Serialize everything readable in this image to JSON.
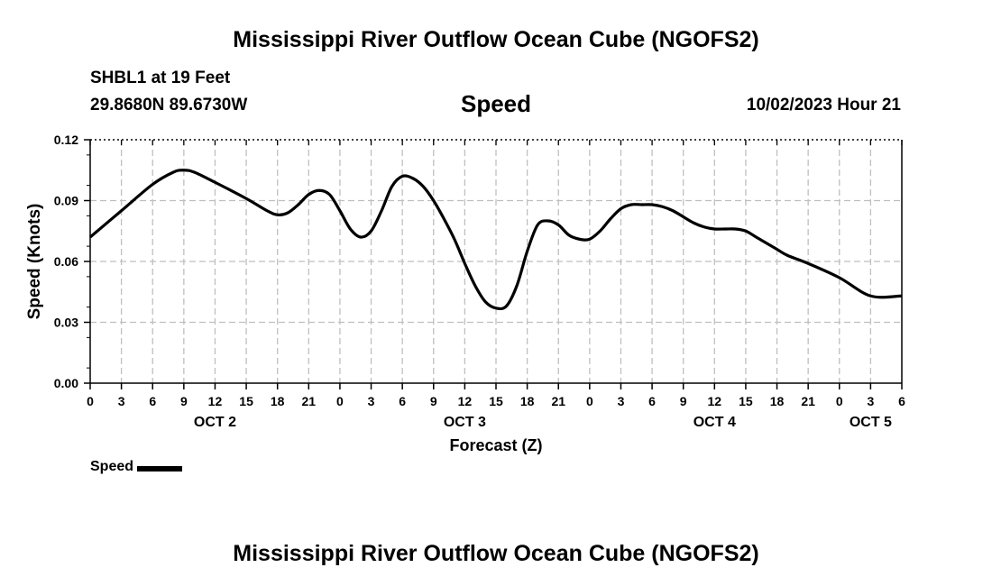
{
  "header": {
    "title": "Mississippi River Outflow Ocean Cube (NGOFS2)",
    "station": "SHBL1 at 19 Feet",
    "coords": "29.8680N  89.6730W",
    "chart_title": "Speed",
    "datetime": "10/02/2023 Hour 21"
  },
  "legend": {
    "label": "Speed"
  },
  "footer": {
    "title": "Mississippi River Outflow Ocean Cube (NGOFS2)"
  },
  "chart_data": {
    "type": "line",
    "title": "Speed",
    "xlabel": "Forecast (Z)",
    "ylabel": "Speed (Knots)",
    "ylim": [
      0,
      0.12
    ],
    "yticks": [
      "0.00",
      "0.03",
      "0.06",
      "0.09",
      "0.12"
    ],
    "xlim": [
      0,
      78
    ],
    "xtick_labels": [
      "0",
      "3",
      "6",
      "9",
      "12",
      "15",
      "18",
      "21",
      "0",
      "3",
      "6",
      "9",
      "12",
      "15",
      "18",
      "21",
      "0",
      "3",
      "6",
      "9",
      "12",
      "15",
      "18",
      "21",
      "0",
      "3",
      "6"
    ],
    "date_labels": [
      {
        "label": "OCT 2",
        "hours": 12
      },
      {
        "label": "OCT 3",
        "hours": 36
      },
      {
        "label": "OCT 4",
        "hours": 60
      },
      {
        "label": "OCT 5",
        "hours": 75
      }
    ],
    "grid": true,
    "series": [
      {
        "name": "Speed",
        "color": "#000000",
        "x": [
          0,
          3,
          6,
          8,
          9,
          10,
          12,
          15,
          17,
          18,
          19,
          20,
          21,
          22,
          23,
          24,
          25,
          26,
          27,
          28,
          29,
          30,
          31,
          32,
          33,
          34,
          35,
          36,
          37,
          38,
          39,
          40,
          41,
          42,
          43,
          44,
          45,
          46,
          47,
          48,
          49,
          50,
          51,
          52,
          53,
          54,
          55,
          56,
          57,
          58,
          59,
          60,
          61,
          62,
          63,
          64,
          65,
          66,
          67,
          69,
          72,
          75,
          78
        ],
        "values": [
          0.072,
          0.085,
          0.098,
          0.104,
          0.105,
          0.104,
          0.099,
          0.091,
          0.085,
          0.083,
          0.084,
          0.088,
          0.093,
          0.095,
          0.093,
          0.085,
          0.076,
          0.072,
          0.075,
          0.085,
          0.097,
          0.102,
          0.101,
          0.097,
          0.09,
          0.081,
          0.071,
          0.059,
          0.048,
          0.04,
          0.037,
          0.038,
          0.048,
          0.065,
          0.078,
          0.08,
          0.078,
          0.073,
          0.071,
          0.071,
          0.075,
          0.081,
          0.086,
          0.088,
          0.088,
          0.088,
          0.087,
          0.085,
          0.082,
          0.079,
          0.077,
          0.076,
          0.076,
          0.076,
          0.075,
          0.072,
          0.069,
          0.066,
          0.063,
          0.059,
          0.052,
          0.043,
          0.043
        ]
      }
    ]
  }
}
